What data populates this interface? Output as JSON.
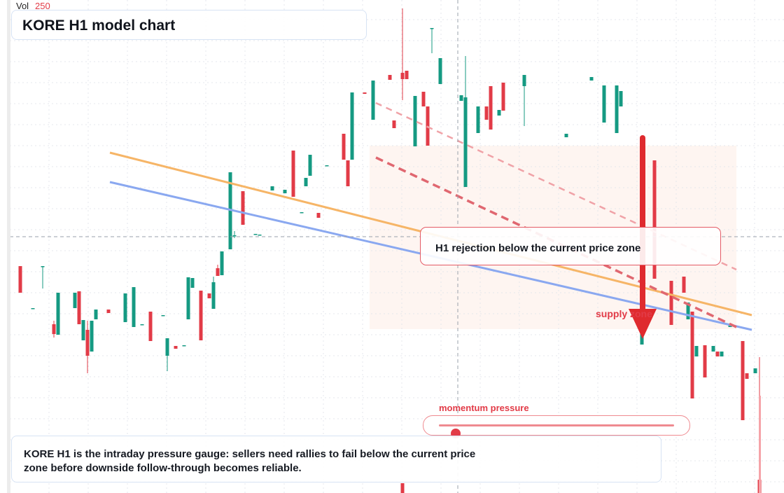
{
  "header": {
    "vol_label": "Vol",
    "vol_value": "250"
  },
  "title": "KORE H1 model chart",
  "annotations": {
    "callout": "H1 rejection below the current price zone",
    "supply_label": "supply zone",
    "momentum_label": "momentum pressure",
    "momentum_level": 0.07
  },
  "summary": "KORE H1 is the intraday pressure gauge: sellers need rallies to fail below the current price zone before downside follow-through becomes reliable.",
  "colors": {
    "up": "#159a82",
    "down": "#e23b47",
    "trend_orange": "#f6b567",
    "trend_blue": "#8aa8f0",
    "dashed_red": "#e06770",
    "zone_fill": "#fdf1ec",
    "grid": "#e4e7ec"
  },
  "chart_data": {
    "type": "candlestick",
    "candles": [
      {
        "o": 0.0,
        "h": 0.0,
        "l": 0.0,
        "c": 0.0
      }
    ]
  }
}
